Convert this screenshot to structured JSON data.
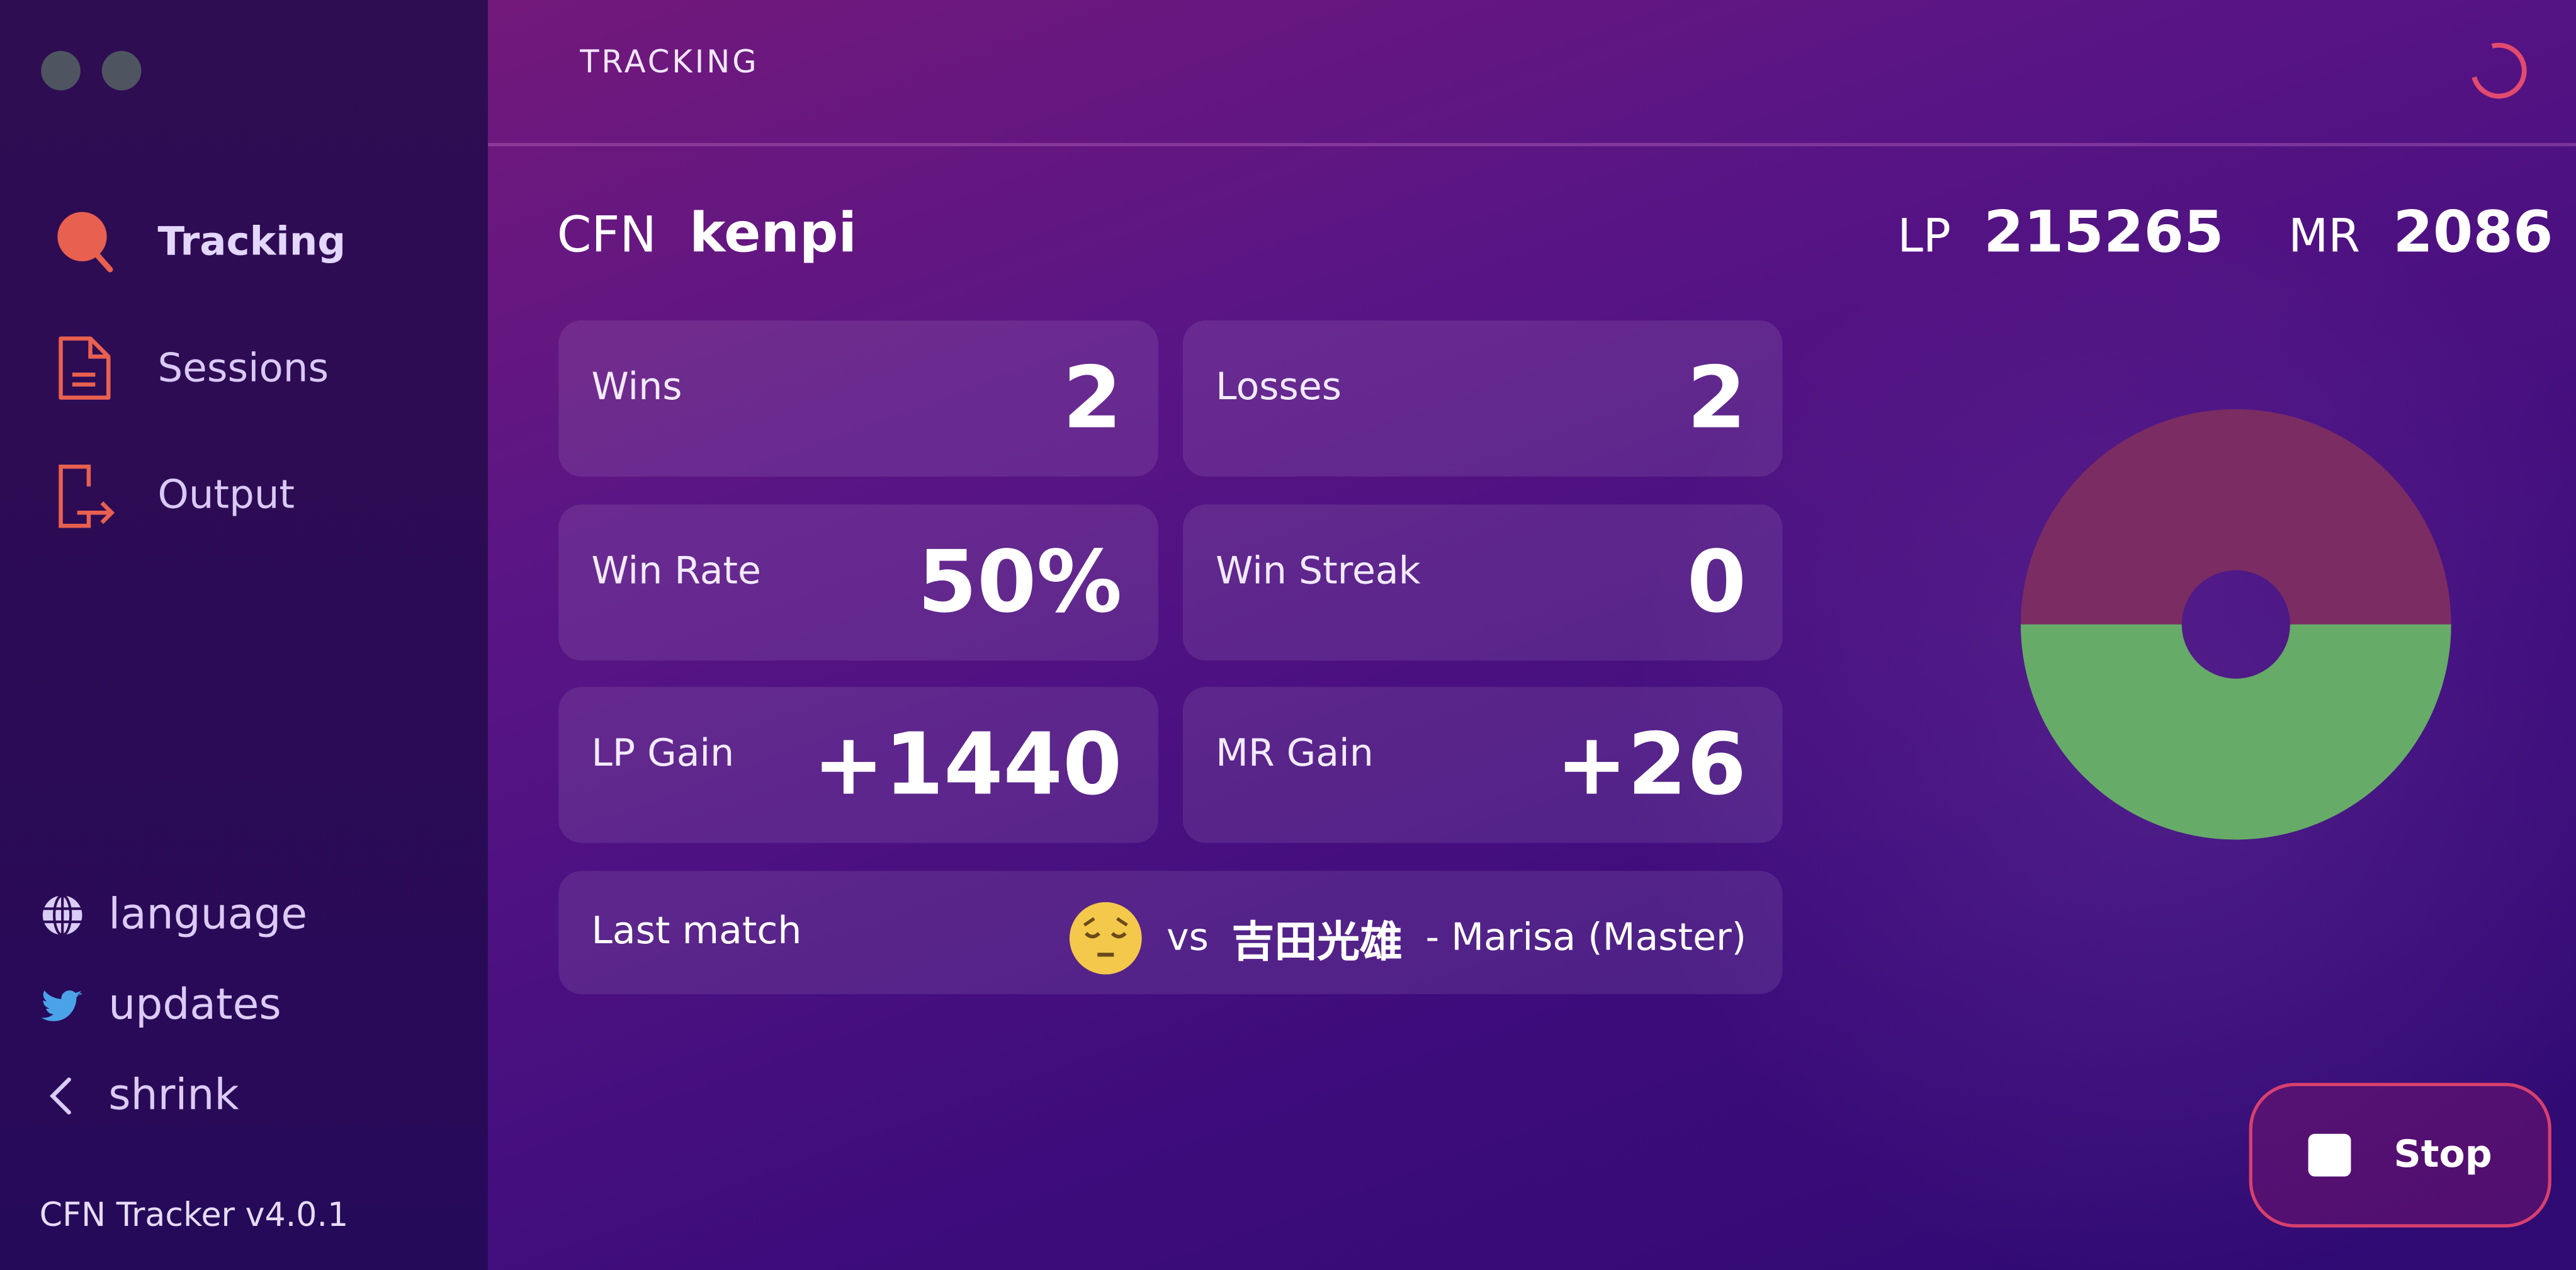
{
  "sidebar": {
    "nav": [
      {
        "label": "Tracking",
        "icon": "search-icon",
        "active": true
      },
      {
        "label": "Sessions",
        "icon": "document-icon"
      },
      {
        "label": "Output",
        "icon": "export-icon"
      }
    ],
    "footer": [
      {
        "label": "language",
        "icon": "globe-icon"
      },
      {
        "label": "updates",
        "icon": "twitter-icon"
      },
      {
        "label": "shrink",
        "icon": "chevron-left-icon"
      }
    ],
    "version": "CFN Tracker v4.0.1"
  },
  "header": {
    "title": "TRACKING"
  },
  "player": {
    "cfn_label": "CFN",
    "cfn": "kenpi",
    "lp_label": "LP",
    "lp": "215265",
    "mr_label": "MR",
    "mr": "2086"
  },
  "cards": [
    {
      "label": "Wins",
      "value": "2"
    },
    {
      "label": "Losses",
      "value": "2"
    },
    {
      "label": "Win Rate",
      "value": "50%"
    },
    {
      "label": "Win Streak",
      "value": "0"
    },
    {
      "label": "LP Gain",
      "value": "+1440"
    },
    {
      "label": "MR Gain",
      "value": "+26"
    }
  ],
  "last_match": {
    "label": "Last match",
    "result_icon": "pensive-face-icon",
    "vs": "vs",
    "opponent": "吉田光雄",
    "detail": "- Marisa (Master)"
  },
  "stop_button": {
    "label": "Stop"
  },
  "colors": {
    "accent": "#e8604f",
    "losses": "#7b2c63",
    "wins": "#67ab68",
    "stop_border": "#d8406e"
  },
  "chart_data": {
    "type": "pie",
    "categories": [
      "Losses",
      "Wins"
    ],
    "values": [
      2,
      2
    ],
    "colors": [
      "#7b2c63",
      "#67ab68"
    ],
    "donut": true
  }
}
